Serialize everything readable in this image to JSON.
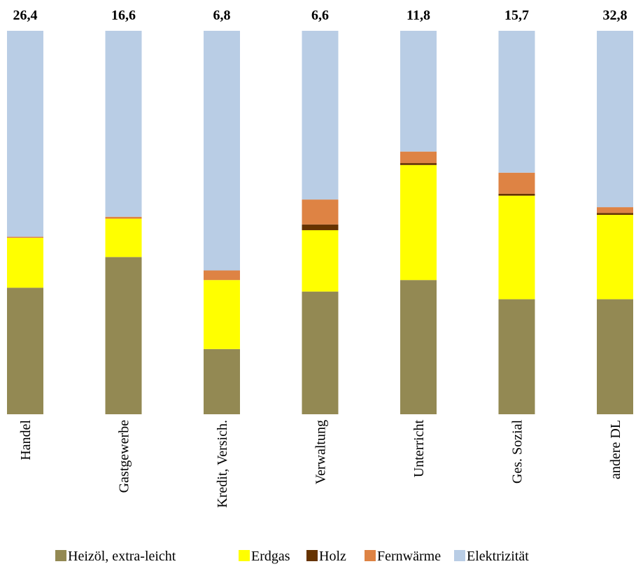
{
  "chart_data": {
    "type": "bar",
    "stacked": true,
    "normalized": true,
    "categories": [
      "Handel",
      "Gastgewerbe",
      "Kredit, Versich.",
      "Verwaltung",
      "Unterricht",
      "Ges. Sozial",
      "andere DL"
    ],
    "totals": [
      "26,4",
      "16,6",
      "6,8",
      "6,6",
      "11,8",
      "15,7",
      "32,8"
    ],
    "series": [
      {
        "name": "Heizöl, extra-leicht",
        "color": "#938953",
        "values": [
          0.33,
          0.41,
          0.17,
          0.32,
          0.35,
          0.3,
          0.3
        ]
      },
      {
        "name": "Erdgas",
        "color": "#FFFF00",
        "values": [
          0.13,
          0.1,
          0.18,
          0.16,
          0.3,
          0.27,
          0.22
        ]
      },
      {
        "name": "Holz",
        "color": "#663300",
        "values": [
          0.0,
          0.0,
          0.0,
          0.015,
          0.005,
          0.005,
          0.005
        ]
      },
      {
        "name": "Fernwärme",
        "color": "#DE8344",
        "values": [
          0.003,
          0.005,
          0.025,
          0.065,
          0.03,
          0.055,
          0.015
        ]
      },
      {
        "name": "Elektrizität",
        "color": "#B9CDE5",
        "values": [
          0.537,
          0.485,
          0.625,
          0.44,
          0.315,
          0.37,
          0.46
        ]
      }
    ],
    "legend_position": "bottom",
    "grid": false
  }
}
